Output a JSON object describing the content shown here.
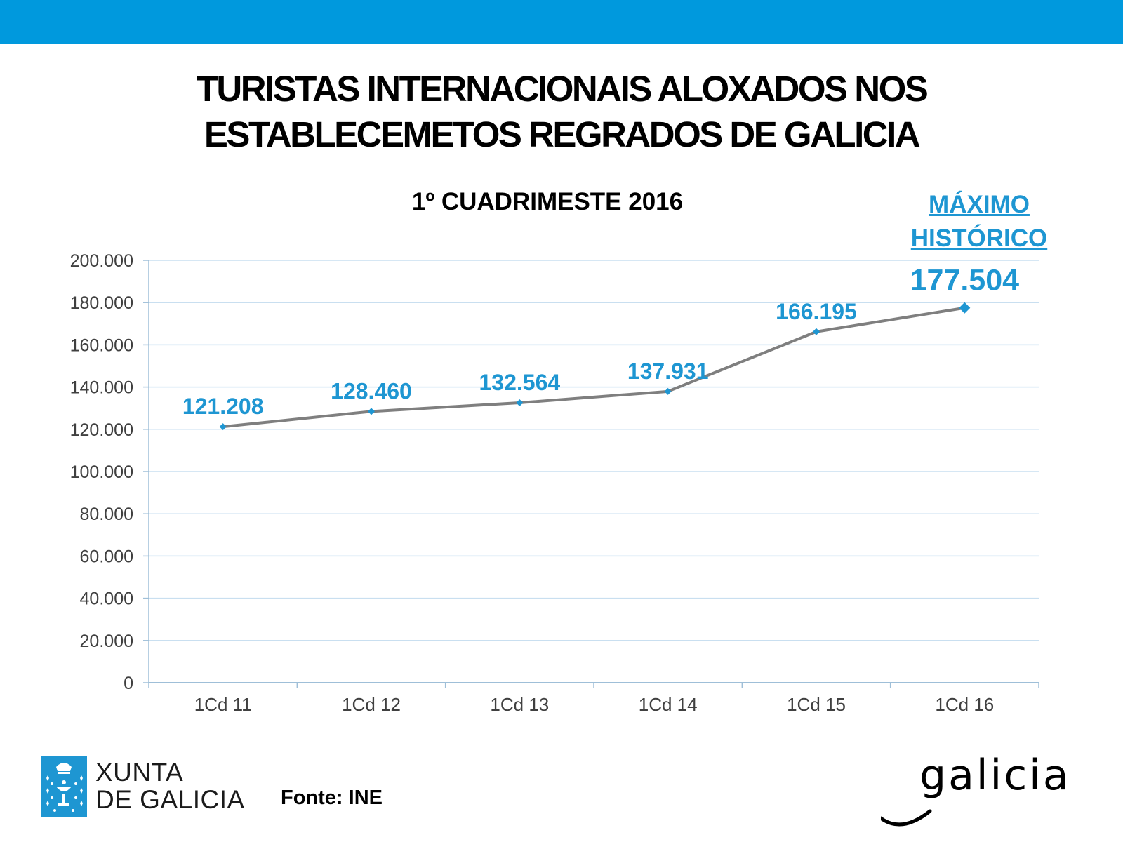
{
  "header": {
    "title_line1": "TURISTAS INTERNACIONAIS ALOXADOS NOS",
    "title_line2": "ESTABLECEMETOS REGRADOS DE GALICIA"
  },
  "colors": {
    "banner": "#0099dd",
    "accent": "#1e96d2",
    "line": "#7f7f7f",
    "grid": "#c9dff0"
  },
  "annotation": {
    "line1": "MÁXIMO",
    "line2": "HISTÓRICO"
  },
  "footer": {
    "logo_line1": "XUNTA",
    "logo_line2": "DE GALICIA",
    "source": "Fonte: INE",
    "brand": "galicia"
  },
  "chart_data": {
    "type": "line",
    "title": "1º CUADRIMESTE 2016",
    "categories": [
      "1Cd 11",
      "1Cd 12",
      "1Cd 13",
      "1Cd 14",
      "1Cd 15",
      "1Cd 16"
    ],
    "series": [
      {
        "values": [
          121208,
          128460,
          132564,
          137931,
          166195,
          177504
        ],
        "data_labels": [
          "121.208",
          "128.460",
          "132.564",
          "137.931",
          "166.195",
          "177.504"
        ]
      }
    ],
    "ylim": [
      0,
      200000
    ],
    "yticks": [
      0,
      20000,
      40000,
      60000,
      80000,
      100000,
      120000,
      140000,
      160000,
      180000,
      200000
    ],
    "ytick_labels": [
      "0",
      "20.000",
      "40.000",
      "60.000",
      "80.000",
      "100.000",
      "120.000",
      "140.000",
      "160.000",
      "180.000",
      "200.000"
    ],
    "grid": true,
    "legend": "none"
  }
}
